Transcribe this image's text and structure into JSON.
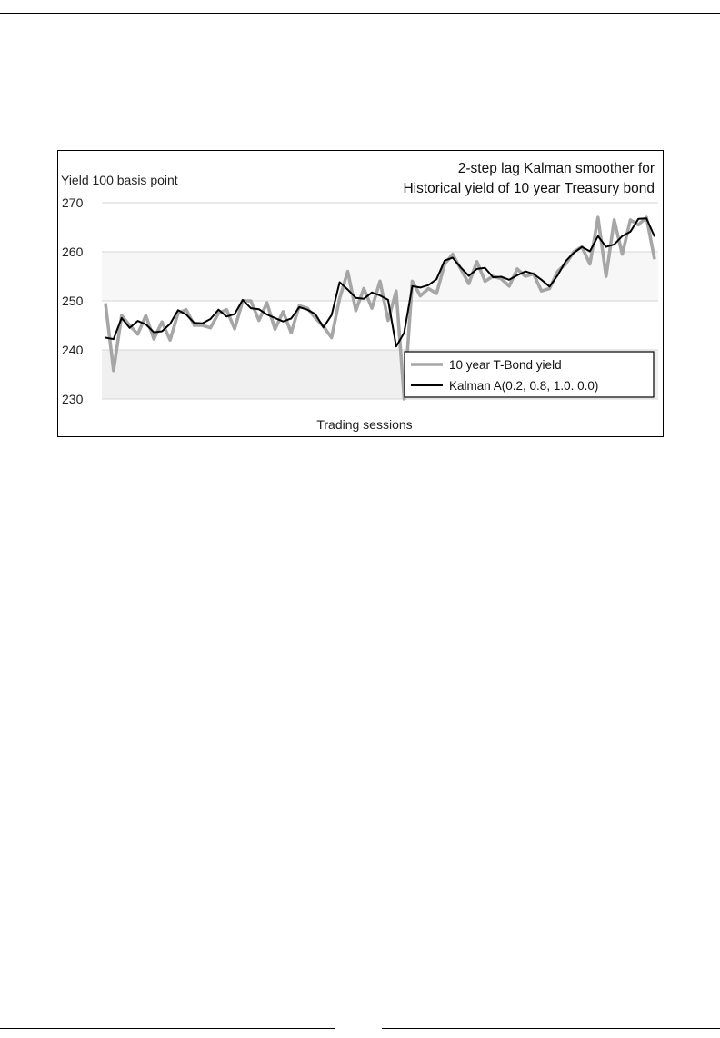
{
  "chart_data": {
    "type": "line",
    "title": [
      "2-step lag Kalman smoother for",
      "Historical yield of 10 year Treasury bond"
    ],
    "xlabel": "Trading sessions",
    "ylabel": "Yield 100 basis point",
    "ylim": [
      230,
      270
    ],
    "yticks": [
      230,
      240,
      250,
      260,
      270
    ],
    "grid": true,
    "legend_position": "bottom-right",
    "colors": {
      "yield": "#a6a6a6",
      "kalman": "#000000",
      "band": "#f0f0f0",
      "grid": "#d4d4d4"
    },
    "series": [
      {
        "name": "10 year T-Bond yield",
        "values": [
          249.5,
          235.8,
          247,
          245,
          243.2,
          247,
          242.2,
          245.7,
          242,
          247.5,
          248.2,
          245,
          245,
          244.5,
          247.5,
          248.2,
          244.3,
          250,
          250,
          246,
          249.6,
          244.2,
          247.8,
          243.5,
          249,
          248.5,
          246.5,
          244.8,
          242.5,
          250.5,
          256,
          248,
          252.5,
          248.5,
          254,
          246,
          252,
          229.8,
          254,
          251,
          252.5,
          251.5,
          257.5,
          259.5,
          256.5,
          253.5,
          258,
          254,
          255,
          254.5,
          253,
          256.5,
          255,
          255.5,
          252,
          252.5,
          256,
          257.5,
          260,
          261,
          257.5,
          267,
          255,
          266.5,
          259.5,
          266.5,
          265.5,
          267,
          258.5
        ]
      },
      {
        "name": "Kalman A(0.2, 0.8, 1.0. 0.0)",
        "values": [
          242.5,
          242.2,
          246.5,
          244.5,
          245.9,
          245.2,
          243.6,
          243.8,
          245.3,
          248.1,
          247.2,
          245.5,
          245.4,
          246.3,
          248.2,
          246.8,
          247.3,
          250.2,
          248.5,
          248.3,
          247.2,
          246.5,
          245.8,
          246.4,
          248.7,
          248.2,
          247.3,
          244.6,
          247.1,
          253.8,
          252.3,
          250.6,
          250.4,
          251.7,
          251.1,
          250.2,
          240.7,
          243.5,
          253,
          252.7,
          253.2,
          254.4,
          258.2,
          258.8,
          256.8,
          255.1,
          256.5,
          256.7,
          254.8,
          254.9,
          254.3,
          255.2,
          256,
          255.5,
          254.3,
          252.9,
          255.2,
          258.1,
          259.8,
          261,
          260.1,
          263.2,
          261,
          261.5,
          263.2,
          264.1,
          266.7,
          266.8,
          263.1
        ]
      }
    ]
  }
}
